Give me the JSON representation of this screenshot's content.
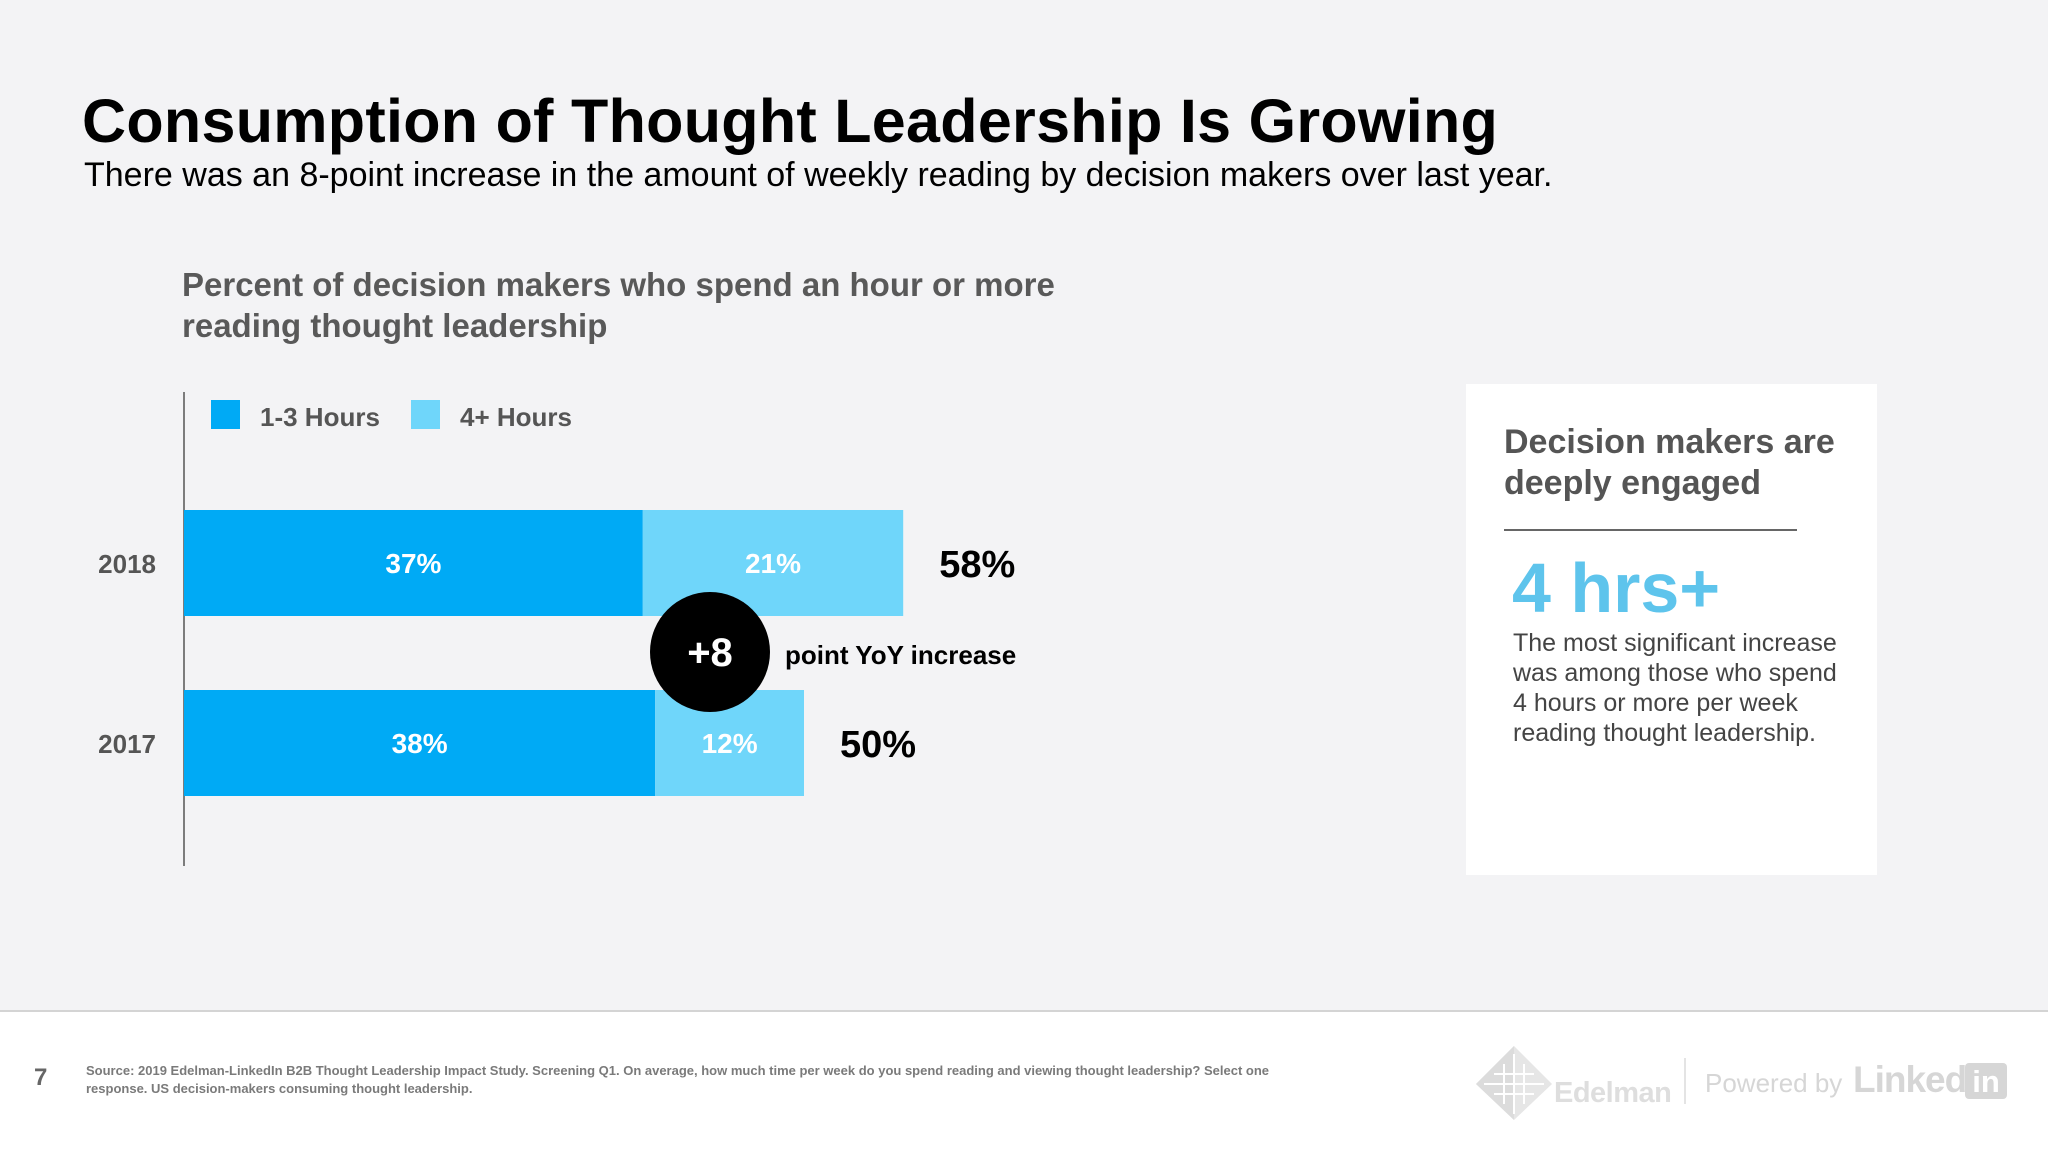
{
  "header": {
    "title": "Consumption of Thought Leadership Is Growing",
    "subtitle": "There was an 8-point increase in the amount of weekly reading by decision makers over last year."
  },
  "chart_data": {
    "type": "bar",
    "orientation": "horizontal",
    "stacked": true,
    "title": "Percent of decision makers who spend an hour or more reading thought leadership",
    "categories": [
      "2018",
      "2017"
    ],
    "series": [
      {
        "name": "1-3 Hours",
        "values": [
          37,
          38
        ],
        "labels": [
          "37%",
          "38%"
        ],
        "color": "#00aaf5"
      },
      {
        "name": "4+ Hours",
        "values": [
          21,
          12
        ],
        "labels": [
          "21%",
          "12%"
        ],
        "color": "#6fd6fa"
      }
    ],
    "totals": [
      58,
      50
    ],
    "total_labels": [
      "58%",
      "50%"
    ],
    "legend_position": "top-left",
    "grid": false,
    "annotation": {
      "value": "+8",
      "text": "point YoY increase"
    }
  },
  "side_card": {
    "title": "Decision makers are deeply engaged",
    "stat": "4 hrs+",
    "text": "The most significant increase was among those who spend 4 hours or more per week reading thought leadership."
  },
  "footer": {
    "page_number": "7",
    "source": "Source: 2019 Edelman-LinkedIn B2B Thought Leadership Impact Study. Screening Q1. On average, how much time per week do you spend reading and viewing thought leadership? Select one response. US decision-makers consuming thought leadership.",
    "edelman_logo": "Edelman",
    "powered_by": "Powered by",
    "linkedin_logo": "Linked",
    "linkedin_box": "in"
  },
  "colors": {
    "background": "#f3f3f5",
    "primary_bar": "#00aaf5",
    "secondary_bar": "#6fd6fa",
    "stat": "#5ec4ec"
  }
}
